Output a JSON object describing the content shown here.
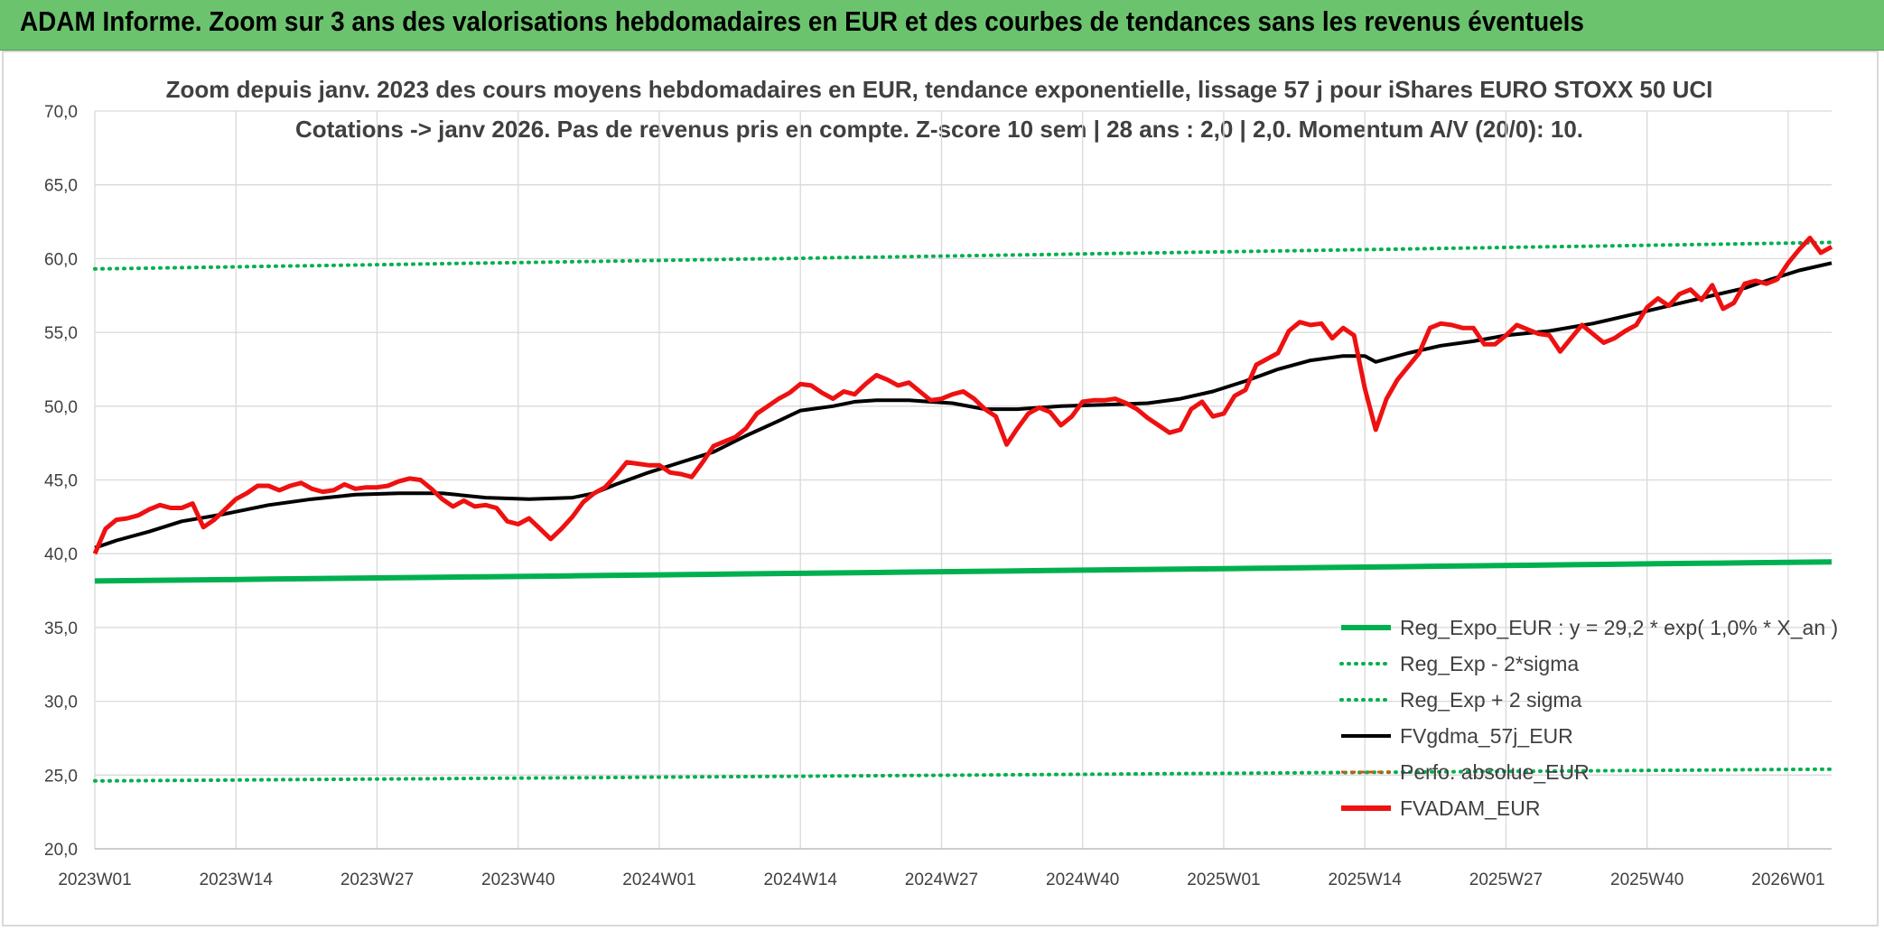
{
  "header": {
    "title": "ADAM Informe. Zoom sur 3 ans des valorisations hebdomadaires en EUR et des courbes de tendances sans les revenus éventuels"
  },
  "colors": {
    "header_bg": "#6cc36e",
    "reg_expo": "#00b050",
    "fvgdma": "#000000",
    "fvadam": "#ee1111",
    "perfo": "#c55a11",
    "grid": "#d9d9d9"
  },
  "chart_data": {
    "type": "line",
    "title_line1": "Zoom depuis janv. 2023 des cours moyens hebdomadaires en EUR, tendance exponentielle, lissage 57 j pour iShares EURO STOXX 50 UCI",
    "title_line2": "Cotations -> janv 2026. Pas de revenus pris en compte. Z-score 10 sem | 28 ans : 2,0 | 2,0. Momentum A/V (20/0): 10.",
    "ylim": [
      20,
      70
    ],
    "yticks": [
      "70,0",
      "65,0",
      "60,0",
      "55,0",
      "50,0",
      "45,0",
      "40,0",
      "35,0",
      "30,0",
      "25,0",
      "20,0"
    ],
    "xticks": [
      {
        "label": "2023W01",
        "week": 0
      },
      {
        "label": "2023W14",
        "week": 13
      },
      {
        "label": "2023W27",
        "week": 26
      },
      {
        "label": "2023W40",
        "week": 39
      },
      {
        "label": "2024W01",
        "week": 52
      },
      {
        "label": "2024W14",
        "week": 65
      },
      {
        "label": "2024W27",
        "week": 78
      },
      {
        "label": "2024W40",
        "week": 91
      },
      {
        "label": "2025W01",
        "week": 104
      },
      {
        "label": "2025W14",
        "week": 117
      },
      {
        "label": "2025W27",
        "week": 130
      },
      {
        "label": "2025W40",
        "week": 143
      },
      {
        "label": "2026W01",
        "week": 156
      }
    ],
    "x_range_weeks": [
      0,
      160
    ],
    "grid": true,
    "legend_position": "bottom-right",
    "series": [
      {
        "name": "Reg_Expo_EUR : y = 29,2 * exp( 1,0% *  X_an )",
        "style": "solid-thick",
        "color": "#00b050",
        "start": 38.15,
        "end": 39.45
      },
      {
        "name": "Reg_Exp - 2*sigma",
        "style": "dotted",
        "color": "#00b050",
        "start": 24.6,
        "end": 25.4
      },
      {
        "name": "Reg_Exp + 2 sigma",
        "style": "dotted",
        "color": "#00b050",
        "start": 59.3,
        "end": 61.1
      },
      {
        "name": "FVgdma_57j_EUR",
        "style": "solid",
        "color": "#000000",
        "points": [
          [
            0,
            40.4
          ],
          [
            2,
            40.9
          ],
          [
            5,
            41.5
          ],
          [
            8,
            42.2
          ],
          [
            12,
            42.7
          ],
          [
            16,
            43.3
          ],
          [
            20,
            43.7
          ],
          [
            24,
            44.0
          ],
          [
            28,
            44.1
          ],
          [
            32,
            44.1
          ],
          [
            36,
            43.8
          ],
          [
            40,
            43.7
          ],
          [
            44,
            43.8
          ],
          [
            46,
            44.1
          ],
          [
            48,
            44.7
          ],
          [
            51,
            45.5
          ],
          [
            54,
            46.2
          ],
          [
            57,
            46.9
          ],
          [
            60,
            48.0
          ],
          [
            63,
            49.0
          ],
          [
            65,
            49.7
          ],
          [
            68,
            50.0
          ],
          [
            70,
            50.3
          ],
          [
            72,
            50.4
          ],
          [
            75,
            50.4
          ],
          [
            79,
            50.2
          ],
          [
            82,
            49.8
          ],
          [
            85,
            49.8
          ],
          [
            89,
            50.0
          ],
          [
            93,
            50.1
          ],
          [
            97,
            50.2
          ],
          [
            100,
            50.5
          ],
          [
            103,
            51.0
          ],
          [
            106,
            51.7
          ],
          [
            109,
            52.5
          ],
          [
            112,
            53.1
          ],
          [
            115,
            53.4
          ],
          [
            117,
            53.4
          ],
          [
            118,
            53.0
          ],
          [
            121,
            53.6
          ],
          [
            124,
            54.1
          ],
          [
            127,
            54.4
          ],
          [
            130,
            54.8
          ],
          [
            134,
            55.1
          ],
          [
            138,
            55.6
          ],
          [
            141,
            56.1
          ],
          [
            145,
            56.8
          ],
          [
            149,
            57.5
          ],
          [
            152,
            58.0
          ],
          [
            154,
            58.5
          ],
          [
            157,
            59.2
          ],
          [
            160,
            59.7
          ]
        ]
      },
      {
        "name": "Perfo. absolue_EUR",
        "style": "dashed",
        "color": "#c55a11"
      },
      {
        "name": "FVADAM_EUR",
        "style": "solid-thick",
        "color": "#ee1111",
        "points": [
          [
            0,
            40.0
          ],
          [
            1,
            41.7
          ],
          [
            2,
            42.3
          ],
          [
            3,
            42.4
          ],
          [
            4,
            42.6
          ],
          [
            5,
            43.0
          ],
          [
            6,
            43.3
          ],
          [
            7,
            43.1
          ],
          [
            8,
            43.1
          ],
          [
            9,
            43.4
          ],
          [
            10,
            41.8
          ],
          [
            11,
            42.3
          ],
          [
            12,
            43.0
          ],
          [
            13,
            43.7
          ],
          [
            14,
            44.1
          ],
          [
            15,
            44.6
          ],
          [
            16,
            44.6
          ],
          [
            17,
            44.3
          ],
          [
            18,
            44.6
          ],
          [
            19,
            44.8
          ],
          [
            20,
            44.4
          ],
          [
            21,
            44.2
          ],
          [
            22,
            44.3
          ],
          [
            23,
            44.7
          ],
          [
            24,
            44.4
          ],
          [
            25,
            44.5
          ],
          [
            26,
            44.5
          ],
          [
            27,
            44.6
          ],
          [
            28,
            44.9
          ],
          [
            29,
            45.1
          ],
          [
            30,
            45.0
          ],
          [
            31,
            44.4
          ],
          [
            32,
            43.7
          ],
          [
            33,
            43.2
          ],
          [
            34,
            43.6
          ],
          [
            35,
            43.2
          ],
          [
            36,
            43.3
          ],
          [
            37,
            43.1
          ],
          [
            38,
            42.2
          ],
          [
            39,
            42.0
          ],
          [
            40,
            42.4
          ],
          [
            41,
            41.7
          ],
          [
            42,
            41.0
          ],
          [
            43,
            41.7
          ],
          [
            44,
            42.5
          ],
          [
            45,
            43.5
          ],
          [
            46,
            44.1
          ],
          [
            47,
            44.5
          ],
          [
            48,
            45.3
          ],
          [
            49,
            46.2
          ],
          [
            50,
            46.1
          ],
          [
            51,
            46.0
          ],
          [
            52,
            46.0
          ],
          [
            53,
            45.5
          ],
          [
            54,
            45.4
          ],
          [
            55,
            45.2
          ],
          [
            56,
            46.2
          ],
          [
            57,
            47.3
          ],
          [
            58,
            47.6
          ],
          [
            59,
            47.9
          ],
          [
            60,
            48.5
          ],
          [
            61,
            49.5
          ],
          [
            62,
            50.0
          ],
          [
            63,
            50.5
          ],
          [
            64,
            50.9
          ],
          [
            65,
            51.5
          ],
          [
            66,
            51.4
          ],
          [
            67,
            50.9
          ],
          [
            68,
            50.5
          ],
          [
            69,
            51.0
          ],
          [
            70,
            50.8
          ],
          [
            71,
            51.5
          ],
          [
            72,
            52.1
          ],
          [
            73,
            51.8
          ],
          [
            74,
            51.4
          ],
          [
            75,
            51.6
          ],
          [
            76,
            51.0
          ],
          [
            77,
            50.4
          ],
          [
            78,
            50.5
          ],
          [
            79,
            50.8
          ],
          [
            80,
            51.0
          ],
          [
            81,
            50.5
          ],
          [
            82,
            49.8
          ],
          [
            83,
            49.3
          ],
          [
            84,
            47.4
          ],
          [
            85,
            48.5
          ],
          [
            86,
            49.5
          ],
          [
            87,
            49.9
          ],
          [
            88,
            49.6
          ],
          [
            89,
            48.7
          ],
          [
            90,
            49.3
          ],
          [
            91,
            50.3
          ],
          [
            92,
            50.4
          ],
          [
            93,
            50.4
          ],
          [
            94,
            50.5
          ],
          [
            95,
            50.2
          ],
          [
            96,
            49.8
          ],
          [
            97,
            49.2
          ],
          [
            98,
            48.7
          ],
          [
            99,
            48.2
          ],
          [
            100,
            48.4
          ],
          [
            101,
            49.8
          ],
          [
            102,
            50.3
          ],
          [
            103,
            49.3
          ],
          [
            104,
            49.5
          ],
          [
            105,
            50.7
          ],
          [
            106,
            51.1
          ],
          [
            107,
            52.8
          ],
          [
            108,
            53.2
          ],
          [
            109,
            53.6
          ],
          [
            110,
            55.1
          ],
          [
            111,
            55.7
          ],
          [
            112,
            55.5
          ],
          [
            113,
            55.6
          ],
          [
            114,
            54.6
          ],
          [
            115,
            55.3
          ],
          [
            116,
            54.8
          ],
          [
            117,
            51.2
          ],
          [
            118,
            48.4
          ],
          [
            119,
            50.5
          ],
          [
            120,
            51.8
          ],
          [
            121,
            52.7
          ],
          [
            122,
            53.6
          ],
          [
            123,
            55.3
          ],
          [
            124,
            55.6
          ],
          [
            125,
            55.5
          ],
          [
            126,
            55.3
          ],
          [
            127,
            55.3
          ],
          [
            128,
            54.2
          ],
          [
            129,
            54.2
          ],
          [
            130,
            54.8
          ],
          [
            131,
            55.5
          ],
          [
            132,
            55.2
          ],
          [
            133,
            54.9
          ],
          [
            134,
            54.8
          ],
          [
            135,
            53.7
          ],
          [
            136,
            54.6
          ],
          [
            137,
            55.5
          ],
          [
            138,
            54.9
          ],
          [
            139,
            54.3
          ],
          [
            140,
            54.6
          ],
          [
            141,
            55.1
          ],
          [
            142,
            55.5
          ],
          [
            143,
            56.7
          ],
          [
            144,
            57.3
          ],
          [
            145,
            56.8
          ],
          [
            146,
            57.6
          ],
          [
            147,
            57.9
          ],
          [
            148,
            57.2
          ],
          [
            149,
            58.2
          ],
          [
            150,
            56.6
          ],
          [
            151,
            57.0
          ],
          [
            152,
            58.3
          ],
          [
            153,
            58.5
          ],
          [
            154,
            58.3
          ],
          [
            155,
            58.6
          ],
          [
            156,
            59.7
          ],
          [
            157,
            60.6
          ],
          [
            158,
            61.4
          ],
          [
            159,
            60.4
          ],
          [
            160,
            60.8
          ]
        ]
      }
    ]
  }
}
